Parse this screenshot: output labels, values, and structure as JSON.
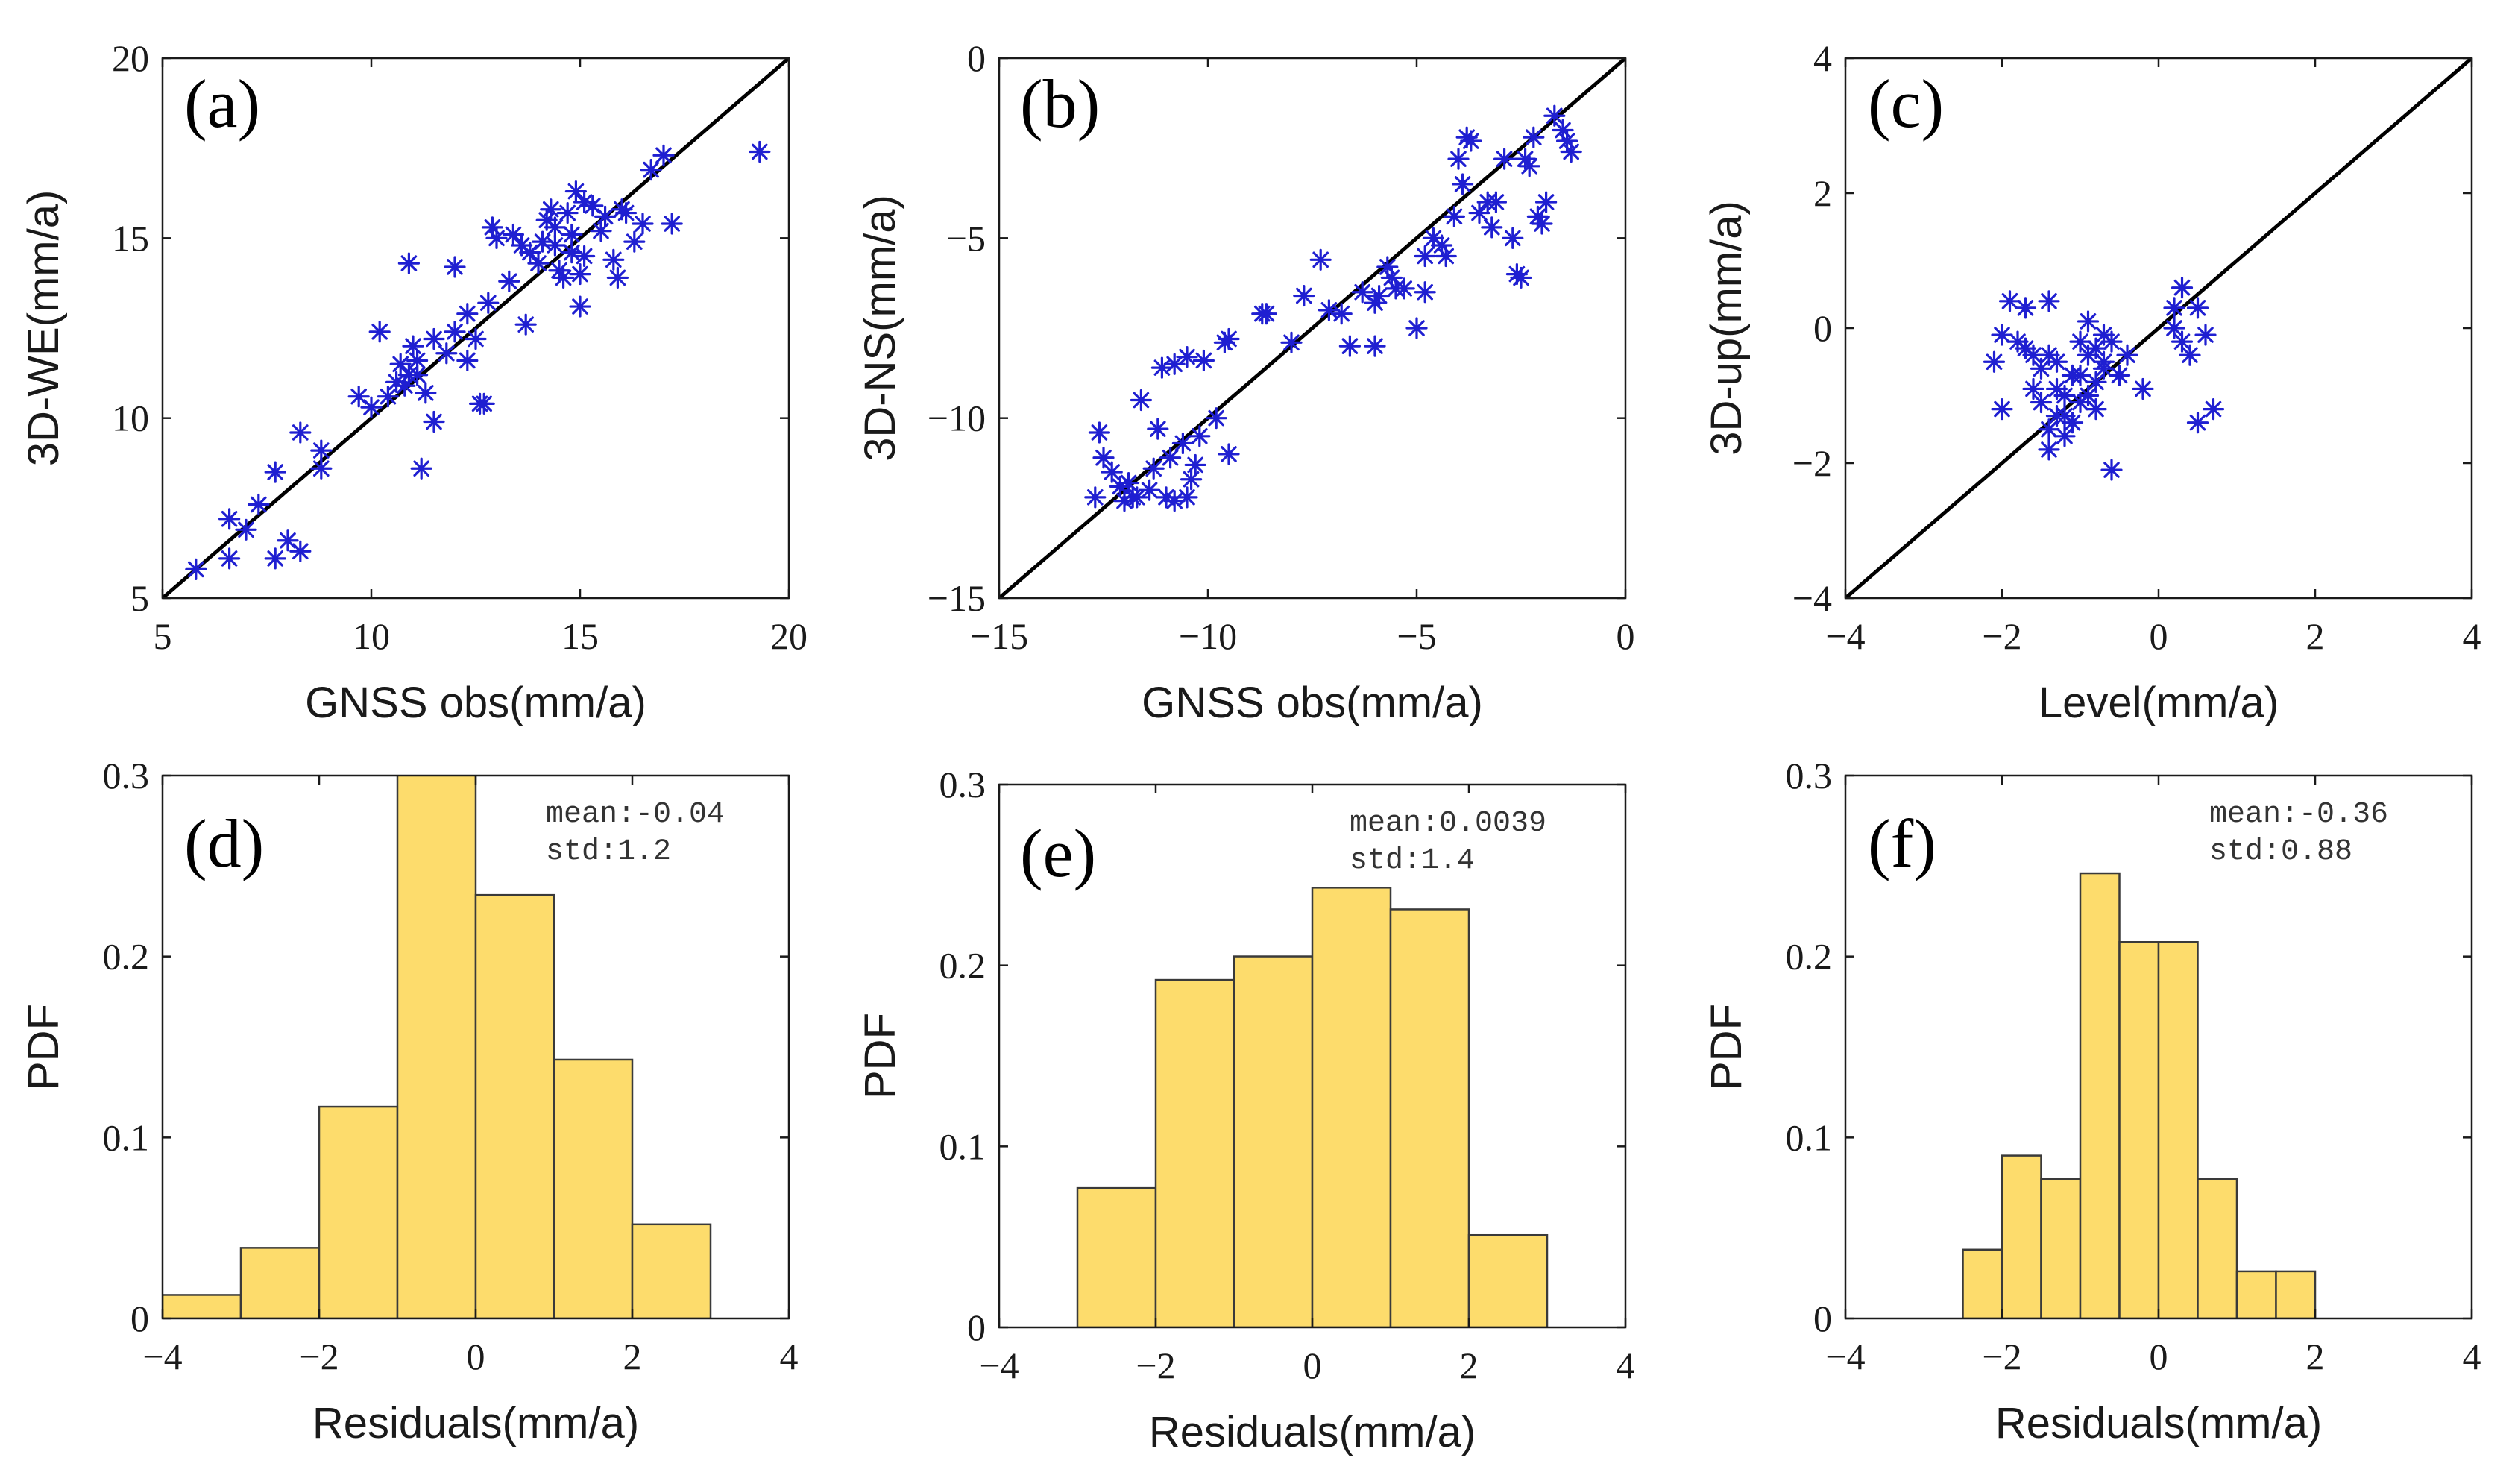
{
  "colors": {
    "scatter": "#1f1fd1",
    "bar_fill": "#fddc6c",
    "bar_edge": "#3a3a3a",
    "line": "#000000"
  },
  "chart_data": [
    {
      "type": "scatter",
      "panel_label": "(a)",
      "xlabel": "GNSS obs(mm/a)",
      "ylabel": "3D-WE(mm/a)",
      "xlim": [
        5,
        20
      ],
      "ylim": [
        5,
        20
      ],
      "xticks": [
        5,
        10,
        15,
        20
      ],
      "yticks": [
        5,
        10,
        15,
        20
      ],
      "xtick_labels": [
        "5",
        "10",
        "15",
        "20"
      ],
      "ytick_labels": [
        "5",
        "10",
        "15",
        "20"
      ],
      "reference_line": [
        [
          5,
          5
        ],
        [
          20,
          20
        ]
      ],
      "points": [
        [
          5.8,
          5.8
        ],
        [
          6.6,
          6.1
        ],
        [
          6.6,
          7.2
        ],
        [
          7.0,
          6.9
        ],
        [
          7.3,
          7.6
        ],
        [
          7.7,
          6.1
        ],
        [
          7.7,
          8.5
        ],
        [
          8.0,
          6.6
        ],
        [
          8.3,
          6.3
        ],
        [
          8.3,
          9.6
        ],
        [
          8.8,
          8.6
        ],
        [
          8.8,
          9.1
        ],
        [
          9.7,
          10.6
        ],
        [
          10.0,
          10.3
        ],
        [
          10.2,
          12.4
        ],
        [
          10.4,
          10.6
        ],
        [
          10.6,
          11.0
        ],
        [
          10.7,
          11.5
        ],
        [
          10.8,
          10.9
        ],
        [
          10.9,
          11.2
        ],
        [
          10.9,
          14.3
        ],
        [
          11.0,
          12.0
        ],
        [
          11.1,
          11.2
        ],
        [
          11.1,
          11.6
        ],
        [
          11.2,
          8.6
        ],
        [
          11.3,
          10.7
        ],
        [
          11.5,
          12.2
        ],
        [
          11.5,
          9.9
        ],
        [
          11.8,
          11.8
        ],
        [
          12.0,
          14.2
        ],
        [
          12.0,
          12.4
        ],
        [
          12.3,
          11.6
        ],
        [
          12.3,
          12.9
        ],
        [
          12.5,
          12.2
        ],
        [
          12.6,
          10.4
        ],
        [
          12.7,
          10.4
        ],
        [
          12.8,
          13.2
        ],
        [
          12.9,
          15.3
        ],
        [
          13.0,
          15.0
        ],
        [
          13.3,
          13.8
        ],
        [
          13.4,
          15.1
        ],
        [
          13.6,
          14.8
        ],
        [
          13.7,
          12.6
        ],
        [
          13.8,
          14.6
        ],
        [
          14.0,
          14.3
        ],
        [
          14.1,
          14.9
        ],
        [
          14.2,
          15.5
        ],
        [
          14.3,
          15.8
        ],
        [
          14.4,
          15.3
        ],
        [
          14.4,
          14.8
        ],
        [
          14.5,
          14.1
        ],
        [
          14.6,
          13.9
        ],
        [
          14.7,
          15.7
        ],
        [
          14.8,
          14.6
        ],
        [
          14.8,
          15.1
        ],
        [
          14.9,
          16.3
        ],
        [
          15.0,
          14.0
        ],
        [
          15.0,
          13.1
        ],
        [
          15.1,
          16.0
        ],
        [
          15.1,
          14.5
        ],
        [
          15.3,
          15.9
        ],
        [
          15.5,
          15.2
        ],
        [
          15.6,
          15.6
        ],
        [
          15.8,
          14.4
        ],
        [
          15.9,
          13.9
        ],
        [
          16.0,
          15.8
        ],
        [
          16.1,
          15.7
        ],
        [
          16.3,
          14.9
        ],
        [
          16.5,
          15.4
        ],
        [
          16.7,
          16.9
        ],
        [
          17.0,
          17.3
        ],
        [
          17.2,
          15.4
        ],
        [
          19.3,
          17.4
        ]
      ]
    },
    {
      "type": "scatter",
      "panel_label": "(b)",
      "xlabel": "GNSS obs(mm/a)",
      "ylabel": "3D-NS(mm/a)",
      "xlim": [
        -15,
        0
      ],
      "ylim": [
        -15,
        0
      ],
      "xticks": [
        -15,
        -10,
        -5,
        0
      ],
      "yticks": [
        -15,
        -10,
        -5,
        0
      ],
      "xtick_labels": [
        "−15",
        "−10",
        "−5",
        "0"
      ],
      "ytick_labels": [
        "−15",
        "−10",
        "−5",
        "0"
      ],
      "reference_line": [
        [
          -15,
          -15
        ],
        [
          0,
          0
        ]
      ],
      "points": [
        [
          -12.7,
          -12.2
        ],
        [
          -12.6,
          -10.4
        ],
        [
          -12.5,
          -11.1
        ],
        [
          -12.3,
          -11.5
        ],
        [
          -12.1,
          -11.9
        ],
        [
          -12.0,
          -12.3
        ],
        [
          -11.9,
          -11.8
        ],
        [
          -11.8,
          -12.2
        ],
        [
          -11.7,
          -12.2
        ],
        [
          -11.6,
          -9.5
        ],
        [
          -11.4,
          -12.0
        ],
        [
          -11.3,
          -11.4
        ],
        [
          -11.2,
          -10.3
        ],
        [
          -11.1,
          -8.6
        ],
        [
          -11.0,
          -12.2
        ],
        [
          -10.9,
          -11.1
        ],
        [
          -10.8,
          -12.3
        ],
        [
          -10.8,
          -8.5
        ],
        [
          -10.6,
          -10.7
        ],
        [
          -10.5,
          -12.2
        ],
        [
          -10.5,
          -8.3
        ],
        [
          -10.4,
          -11.7
        ],
        [
          -10.3,
          -11.3
        ],
        [
          -10.2,
          -10.5
        ],
        [
          -10.1,
          -8.4
        ],
        [
          -9.8,
          -10.0
        ],
        [
          -9.6,
          -7.9
        ],
        [
          -9.5,
          -11.0
        ],
        [
          -9.5,
          -7.8
        ],
        [
          -8.7,
          -7.1
        ],
        [
          -8.6,
          -7.1
        ],
        [
          -8.0,
          -7.9
        ],
        [
          -7.7,
          -6.6
        ],
        [
          -7.3,
          -5.6
        ],
        [
          -7.1,
          -7.0
        ],
        [
          -6.8,
          -7.1
        ],
        [
          -6.6,
          -8.0
        ],
        [
          -6.3,
          -6.5
        ],
        [
          -6.0,
          -8.0
        ],
        [
          -6.0,
          -6.8
        ],
        [
          -5.9,
          -6.6
        ],
        [
          -5.7,
          -5.8
        ],
        [
          -5.6,
          -6.1
        ],
        [
          -5.5,
          -6.4
        ],
        [
          -5.3,
          -6.4
        ],
        [
          -5.0,
          -7.5
        ],
        [
          -4.8,
          -6.5
        ],
        [
          -4.8,
          -5.5
        ],
        [
          -4.6,
          -5.0
        ],
        [
          -4.4,
          -5.2
        ],
        [
          -4.3,
          -5.5
        ],
        [
          -4.1,
          -4.4
        ],
        [
          -4.0,
          -2.8
        ],
        [
          -3.9,
          -3.5
        ],
        [
          -3.8,
          -2.2
        ],
        [
          -3.7,
          -2.3
        ],
        [
          -3.5,
          -4.3
        ],
        [
          -3.3,
          -4.0
        ],
        [
          -3.2,
          -4.7
        ],
        [
          -3.1,
          -4.0
        ],
        [
          -2.9,
          -2.8
        ],
        [
          -2.7,
          -5.0
        ],
        [
          -2.6,
          -6.0
        ],
        [
          -2.5,
          -6.1
        ],
        [
          -2.4,
          -2.8
        ],
        [
          -2.3,
          -3.0
        ],
        [
          -2.2,
          -2.2
        ],
        [
          -2.1,
          -4.4
        ],
        [
          -2.0,
          -4.6
        ],
        [
          -1.9,
          -4.0
        ],
        [
          -1.7,
          -1.6
        ],
        [
          -1.5,
          -2.0
        ],
        [
          -1.4,
          -2.3
        ],
        [
          -1.3,
          -2.6
        ]
      ]
    },
    {
      "type": "scatter",
      "panel_label": "(c)",
      "xlabel": "Level(mm/a)",
      "ylabel": "3D-up(mm/a)",
      "xlim": [
        -4,
        4
      ],
      "ylim": [
        -4,
        4
      ],
      "xticks": [
        -4,
        -2,
        0,
        2,
        4
      ],
      "yticks": [
        -4,
        -2,
        0,
        2,
        4
      ],
      "xtick_labels": [
        "−4",
        "−2",
        "0",
        "2",
        "4"
      ],
      "ytick_labels": [
        "−4",
        "−2",
        "0",
        "2",
        "4"
      ],
      "reference_line": [
        [
          -4,
          -4
        ],
        [
          4,
          4
        ]
      ],
      "points": [
        [
          -2.1,
          -0.5
        ],
        [
          -2.0,
          -0.1
        ],
        [
          -2.0,
          -1.2
        ],
        [
          -1.9,
          0.4
        ],
        [
          -1.8,
          -0.2
        ],
        [
          -1.7,
          -0.3
        ],
        [
          -1.7,
          0.3
        ],
        [
          -1.6,
          -0.4
        ],
        [
          -1.6,
          -0.9
        ],
        [
          -1.5,
          -1.1
        ],
        [
          -1.5,
          -0.6
        ],
        [
          -1.4,
          -0.4
        ],
        [
          -1.4,
          -1.5
        ],
        [
          -1.4,
          0.4
        ],
        [
          -1.4,
          -1.8
        ],
        [
          -1.3,
          -1.3
        ],
        [
          -1.3,
          -0.9
        ],
        [
          -1.3,
          -0.5
        ],
        [
          -1.2,
          -1.6
        ],
        [
          -1.2,
          -1.3
        ],
        [
          -1.2,
          -1.0
        ],
        [
          -1.1,
          -0.7
        ],
        [
          -1.1,
          -1.4
        ],
        [
          -1.0,
          -0.2
        ],
        [
          -1.0,
          -0.7
        ],
        [
          -1.0,
          -1.1
        ],
        [
          -0.9,
          -0.4
        ],
        [
          -0.9,
          0.1
        ],
        [
          -0.9,
          -1.0
        ],
        [
          -0.8,
          -0.3
        ],
        [
          -0.8,
          -0.8
        ],
        [
          -0.8,
          -1.2
        ],
        [
          -0.7,
          -0.5
        ],
        [
          -0.7,
          -0.1
        ],
        [
          -0.7,
          -0.6
        ],
        [
          -0.6,
          -0.2
        ],
        [
          -0.6,
          -2.1
        ],
        [
          -0.5,
          -0.7
        ],
        [
          -0.4,
          -0.4
        ],
        [
          -0.2,
          -0.9
        ],
        [
          0.2,
          0.0
        ],
        [
          0.2,
          0.3
        ],
        [
          0.3,
          0.6
        ],
        [
          0.3,
          -0.2
        ],
        [
          0.4,
          -0.4
        ],
        [
          0.5,
          0.3
        ],
        [
          0.5,
          -1.4
        ],
        [
          0.6,
          -0.1
        ],
        [
          0.7,
          -1.2
        ]
      ]
    },
    {
      "type": "histogram",
      "panel_label": "(d)",
      "xlabel": "Residuals(mm/a)",
      "ylabel": "PDF",
      "xlim": [
        -4,
        4
      ],
      "ylim": [
        0,
        0.3
      ],
      "xticks": [
        -4,
        -2,
        0,
        2,
        4
      ],
      "yticks": [
        0,
        0.1,
        0.2,
        0.3
      ],
      "xtick_labels": [
        "−4",
        "−2",
        "0",
        "2",
        "4"
      ],
      "ytick_labels": [
        "0",
        "0.1",
        "0.2",
        "0.3"
      ],
      "stats": [
        "mean:-0.04",
        "std:1.2"
      ],
      "bins": [
        [
          -4,
          -3,
          0.013
        ],
        [
          -3,
          -2,
          0.039
        ],
        [
          -2,
          -1,
          0.117
        ],
        [
          -1,
          0,
          0.31
        ],
        [
          0,
          1,
          0.234
        ],
        [
          1,
          2,
          0.143
        ],
        [
          2,
          3,
          0.052
        ]
      ]
    },
    {
      "type": "histogram",
      "panel_label": "(e)",
      "xlabel": "Residuals(mm/a)",
      "ylabel": "PDF",
      "xlim": [
        -4,
        4
      ],
      "ylim": [
        0,
        0.3
      ],
      "xticks": [
        -4,
        -2,
        0,
        2,
        4
      ],
      "yticks": [
        0,
        0.1,
        0.2,
        0.3
      ],
      "xtick_labels": [
        "−4",
        "−2",
        "0",
        "2",
        "4"
      ],
      "ytick_labels": [
        "0",
        "0.1",
        "0.2",
        "0.3"
      ],
      "stats": [
        "mean:0.0039",
        "std:1.4"
      ],
      "bins": [
        [
          -3,
          -2,
          0.077
        ],
        [
          -2,
          -1,
          0.192
        ],
        [
          -1,
          0,
          0.205
        ],
        [
          0,
          1,
          0.243
        ],
        [
          1,
          2,
          0.231
        ],
        [
          2,
          3,
          0.051
        ]
      ]
    },
    {
      "type": "histogram",
      "panel_label": "(f)",
      "xlabel": "Residuals(mm/a)",
      "ylabel": "PDF",
      "xlim": [
        -4,
        4
      ],
      "ylim": [
        0,
        0.3
      ],
      "xticks": [
        -4,
        -2,
        0,
        2,
        4
      ],
      "yticks": [
        0,
        0.1,
        0.2,
        0.3
      ],
      "xtick_labels": [
        "−4",
        "−2",
        "0",
        "2",
        "4"
      ],
      "ytick_labels": [
        "0",
        "0.1",
        "0.2",
        "0.3"
      ],
      "stats": [
        "mean:-0.36",
        "std:0.88"
      ],
      "bins": [
        [
          -2.5,
          -2.0,
          0.038
        ],
        [
          -2.0,
          -1.5,
          0.09
        ],
        [
          -1.5,
          -1.0,
          0.077
        ],
        [
          -1.0,
          -0.5,
          0.246
        ],
        [
          -0.5,
          0.0,
          0.208
        ],
        [
          0.0,
          0.5,
          0.208
        ],
        [
          0.5,
          1.0,
          0.077
        ],
        [
          1.0,
          1.5,
          0.026
        ],
        [
          1.5,
          2.0,
          0.026
        ]
      ]
    }
  ]
}
